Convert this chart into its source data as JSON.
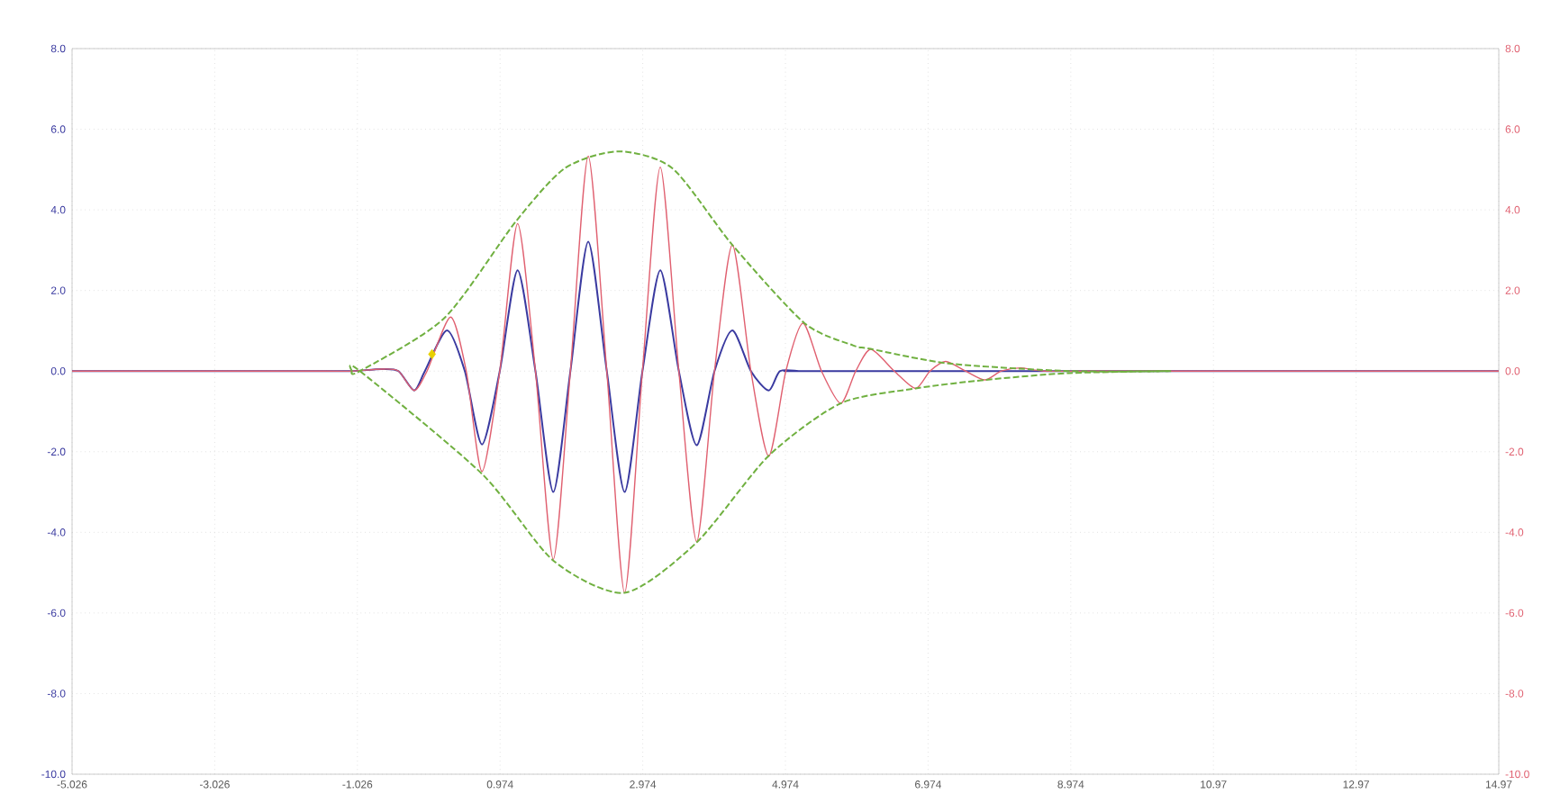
{
  "chart_data": {
    "type": "line",
    "xlim": [
      -5.026,
      14.974
    ],
    "xticks": [
      -5.026,
      -3.026,
      -1.026,
      0.974,
      2.974,
      4.974,
      6.974,
      8.974,
      {
        "value": 10.974,
        "label": "10.97"
      },
      {
        "value": 12.974,
        "label": "12.97"
      },
      {
        "value": 14.974,
        "label": "14.97"
      }
    ],
    "ylim": [
      -10,
      8
    ],
    "yticks": [
      {
        "value": -10,
        "label": "-10.0"
      },
      {
        "value": -8,
        "label": "-8.0"
      },
      {
        "value": -6,
        "label": "-6.0"
      },
      {
        "value": -4,
        "label": "-4.0"
      },
      {
        "value": -2,
        "label": "-2.0"
      },
      {
        "value": 0,
        "label": "0.0"
      },
      {
        "value": 2,
        "label": "2.0"
      },
      {
        "value": 4,
        "label": "4.0"
      },
      {
        "value": 6,
        "label": "6.0"
      },
      {
        "value": 8,
        "label": "8.0"
      }
    ],
    "y2lim": [
      -10,
      8
    ],
    "y2ticks": [
      {
        "value": -10,
        "label": "-10.0"
      },
      {
        "value": -8,
        "label": "-8.0"
      },
      {
        "value": -6,
        "label": "-6.0"
      },
      {
        "value": -4,
        "label": "-4.0"
      },
      {
        "value": -2,
        "label": "-2.0"
      },
      {
        "value": 0,
        "label": "0.0"
      },
      {
        "value": 2,
        "label": "2.0"
      },
      {
        "value": 4,
        "label": "4.0"
      },
      {
        "value": 6,
        "label": "6.0"
      },
      {
        "value": 8,
        "label": "8.0"
      }
    ],
    "grid": true,
    "marker": "none",
    "series": [
      {
        "type": "line",
        "line_style": "dashed",
        "color": "#70b040",
        "x": [
          -1.1,
          -0.99,
          0.19,
          1.19,
          1.88,
          2.63,
          3.39,
          4.23,
          5.24,
          5.92,
          6.17,
          7.26,
          8.95,
          10.38
        ],
        "values": [
          0,
          0,
          1.31,
          3.7,
          5.03,
          5.45,
          5.03,
          3.13,
          1.19,
          0.64,
          0.55,
          0.19,
          0,
          0
        ]
      },
      {
        "type": "line",
        "line_style": "dashed",
        "color": "#70b040",
        "x": [
          -1.1,
          -0.99,
          0.72,
          1.72,
          2.72,
          3.73,
          4.74,
          5.75,
          6.8,
          7.77,
          8.95,
          10.38
        ],
        "values": [
          0,
          0,
          -2.55,
          -4.7,
          -5.5,
          -4.25,
          -2.1,
          -0.8,
          -0.43,
          -0.22,
          -0.05,
          0
        ]
      },
      {
        "axis": "y2",
        "line_style": "solid",
        "color": "#e06070",
        "x": [
          -5.026,
          -1.5,
          -1.1,
          -0.69,
          -0.45,
          -0.23,
          -0.05,
          0.28,
          0.5,
          0.72,
          0.97,
          1.22,
          1.47,
          1.72,
          1.96,
          2.21,
          2.47,
          2.72,
          2.97,
          3.22,
          3.48,
          3.73,
          3.98,
          4.23,
          4.49,
          4.74,
          4.98,
          5.22,
          5.48,
          5.75,
          5.96,
          6.17,
          6.5,
          6.8,
          7.0,
          7.22,
          7.5,
          7.77,
          8.0,
          8.27,
          8.6,
          9.5,
          10.0,
          14.974
        ],
        "values": [
          0,
          0,
          0,
          0.05,
          0,
          -0.48,
          0,
          1.34,
          0,
          -2.49,
          0,
          3.66,
          0,
          -4.67,
          0,
          5.33,
          0,
          -5.5,
          0,
          5.06,
          0,
          -4.23,
          0,
          3.13,
          0,
          -2.11,
          0,
          1.19,
          0,
          -0.8,
          0,
          0.54,
          0,
          -0.43,
          0,
          0.24,
          0,
          -0.22,
          0,
          0.08,
          0,
          0,
          0,
          0
        ]
      },
      {
        "line_style": "solid",
        "color": "#3a3aa0",
        "x": [
          -5.026,
          -1.5,
          -1.1,
          -0.69,
          -0.45,
          -0.23,
          -0.08,
          0.23,
          0.48,
          0.72,
          0.97,
          1.22,
          1.47,
          1.72,
          1.96,
          2.21,
          2.47,
          2.72,
          2.97,
          3.22,
          3.48,
          3.73,
          3.98,
          4.23,
          4.49,
          4.74,
          4.9,
          5.2,
          5.6,
          14.974
        ],
        "values": [
          0,
          0,
          0,
          0.05,
          0,
          -0.48,
          0,
          1.01,
          0,
          -1.82,
          0,
          2.5,
          0,
          -3.0,
          0,
          3.21,
          0,
          -3.0,
          0,
          2.5,
          0,
          -1.84,
          0,
          1.01,
          0,
          -0.48,
          0,
          0,
          0,
          0
        ]
      },
      {
        "type": "scatter",
        "marker": "diamond",
        "color": "#e8d000",
        "x": [
          0.02
        ],
        "values": [
          0.42
        ]
      }
    ]
  }
}
